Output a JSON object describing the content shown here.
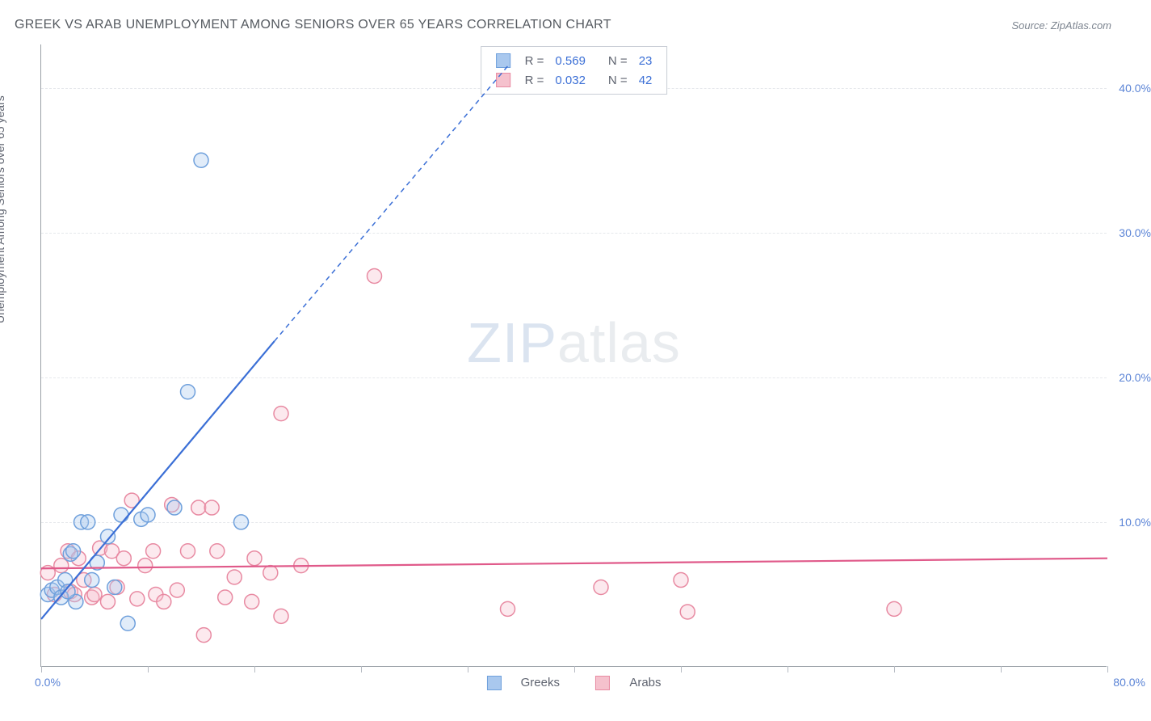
{
  "title": "GREEK VS ARAB UNEMPLOYMENT AMONG SENIORS OVER 65 YEARS CORRELATION CHART",
  "source": "Source: ZipAtlas.com",
  "y_axis_label": "Unemployment Among Seniors over 65 years",
  "watermark_a": "ZIP",
  "watermark_b": "atlas",
  "chart": {
    "type": "scatter",
    "xlim": [
      0,
      80
    ],
    "ylim": [
      0,
      43
    ],
    "x_tick_positions": [
      0,
      8,
      16,
      24,
      32,
      40,
      48,
      56,
      64,
      72,
      80
    ],
    "x_min_label": "0.0%",
    "x_max_label": "80.0%",
    "y_ticks": [
      10,
      20,
      30,
      40
    ],
    "y_tick_labels": [
      "10.0%",
      "20.0%",
      "30.0%",
      "40.0%"
    ],
    "background_color": "#ffffff",
    "grid_color": "#e6e8ec",
    "axis_color": "#9aa0a6",
    "tick_label_color": "#5b84d6",
    "point_radius": 9,
    "series": {
      "greeks": {
        "label": "Greeks",
        "fill": "#a9c8ee",
        "stroke": "#6fa0dc",
        "r_value": "0.569",
        "n_value": "23",
        "points": [
          [
            0.5,
            5.0
          ],
          [
            0.8,
            5.3
          ],
          [
            1.2,
            5.5
          ],
          [
            1.5,
            4.8
          ],
          [
            1.8,
            6.0
          ],
          [
            2.2,
            7.8
          ],
          [
            2.4,
            8.0
          ],
          [
            2.6,
            4.5
          ],
          [
            3.0,
            10.0
          ],
          [
            3.5,
            10.0
          ],
          [
            3.8,
            6.0
          ],
          [
            4.2,
            7.2
          ],
          [
            5.0,
            9.0
          ],
          [
            5.5,
            5.5
          ],
          [
            6.0,
            10.5
          ],
          [
            6.5,
            3.0
          ],
          [
            7.5,
            10.2
          ],
          [
            8.0,
            10.5
          ],
          [
            10.0,
            11.0
          ],
          [
            11.0,
            19.0
          ],
          [
            12.0,
            35.0
          ],
          [
            15.0,
            10.0
          ],
          [
            2.0,
            5.2
          ]
        ],
        "trend_solid": {
          "x1": 0,
          "y1": 3.3,
          "x2": 17.5,
          "y2": 22.5
        },
        "trend_dashed": {
          "x1": 17.5,
          "y1": 22.5,
          "x2": 35,
          "y2": 41.5
        },
        "trend_color": "#3b6fd6",
        "trend_width": 2.2
      },
      "arabs": {
        "label": "Arabs",
        "fill": "#f5c1cd",
        "stroke": "#e88aa2",
        "r_value": "0.032",
        "n_value": "42",
        "points": [
          [
            0.5,
            6.5
          ],
          [
            1.0,
            5.0
          ],
          [
            1.5,
            7.0
          ],
          [
            2.0,
            8.0
          ],
          [
            2.2,
            5.2
          ],
          [
            2.5,
            5.0
          ],
          [
            2.8,
            7.5
          ],
          [
            3.2,
            6.0
          ],
          [
            3.8,
            4.8
          ],
          [
            4.0,
            5.0
          ],
          [
            4.4,
            8.2
          ],
          [
            5.0,
            4.5
          ],
          [
            5.3,
            8.0
          ],
          [
            5.7,
            5.5
          ],
          [
            6.2,
            7.5
          ],
          [
            6.8,
            11.5
          ],
          [
            7.2,
            4.7
          ],
          [
            7.8,
            7.0
          ],
          [
            8.4,
            8.0
          ],
          [
            8.6,
            5.0
          ],
          [
            9.2,
            4.5
          ],
          [
            9.8,
            11.2
          ],
          [
            10.2,
            5.3
          ],
          [
            11.0,
            8.0
          ],
          [
            11.8,
            11.0
          ],
          [
            12.2,
            2.2
          ],
          [
            12.8,
            11.0
          ],
          [
            13.2,
            8.0
          ],
          [
            13.8,
            4.8
          ],
          [
            14.5,
            6.2
          ],
          [
            15.8,
            4.5
          ],
          [
            16.0,
            7.5
          ],
          [
            17.2,
            6.5
          ],
          [
            18.0,
            17.5
          ],
          [
            18.0,
            3.5
          ],
          [
            19.5,
            7.0
          ],
          [
            25.0,
            27.0
          ],
          [
            35.0,
            4.0
          ],
          [
            42.0,
            5.5
          ],
          [
            48.0,
            6.0
          ],
          [
            48.5,
            3.8
          ],
          [
            64.0,
            4.0
          ]
        ],
        "trend_solid": {
          "x1": 0,
          "y1": 6.8,
          "x2": 80,
          "y2": 7.5
        },
        "trend_color": "#e05a8a",
        "trend_width": 2.2
      }
    }
  },
  "legend_top": {
    "r_label": "R =",
    "n_label": "N ="
  }
}
